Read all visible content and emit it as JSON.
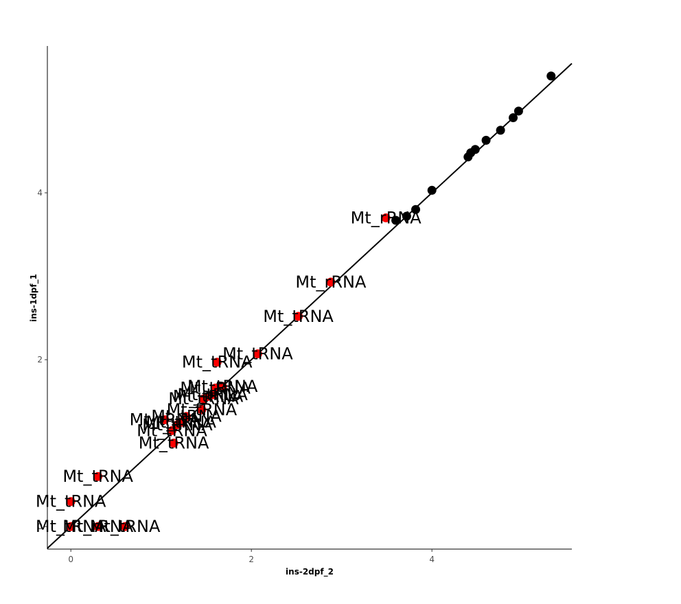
{
  "chart_data": {
    "type": "scatter",
    "xlabel": "ins-2dpf_2",
    "ylabel": "ins-1dpf_1",
    "xlim": [
      -0.26,
      5.55
    ],
    "ylim": [
      -0.27,
      5.76
    ],
    "x_ticks": [
      0,
      2,
      4
    ],
    "y_ticks": [
      0,
      2,
      4
    ],
    "x_tick_labels": [
      "0",
      "2",
      "4"
    ],
    "y_tick_labels": [
      "0",
      "2",
      "4"
    ],
    "grid": false,
    "reference_line": {
      "slope": 1,
      "intercept": 0
    },
    "colors": {
      "highlight": "#ff0000",
      "other": "#000000",
      "line": "#000000"
    },
    "series": [
      {
        "color": "#ff0000",
        "points": [
          {
            "x": 3.49,
            "y": 3.7,
            "label": "Mt_rRNA"
          },
          {
            "x": 2.88,
            "y": 2.93,
            "label": "Mt_rRNA"
          },
          {
            "x": 2.52,
            "y": 2.52,
            "label": "Mt_tRNA"
          },
          {
            "x": 2.07,
            "y": 2.07,
            "label": "Mt_tRNA"
          },
          {
            "x": 1.62,
            "y": 1.97,
            "label": "Mt_tRNA"
          },
          {
            "x": 1.68,
            "y": 1.68,
            "label": "Mt_tRNA"
          },
          {
            "x": 1.6,
            "y": 1.66,
            "label": "Mt_tRNA"
          },
          {
            "x": 1.57,
            "y": 1.58,
            "label": "Mt_tRNA"
          },
          {
            "x": 1.52,
            "y": 1.56,
            "label": "Mt_tRNA"
          },
          {
            "x": 1.47,
            "y": 1.53,
            "label": "Mt_tRNA"
          },
          {
            "x": 1.45,
            "y": 1.4,
            "label": "Mt_tRNA"
          },
          {
            "x": 1.28,
            "y": 1.32,
            "label": "Mt_tRNA"
          },
          {
            "x": 1.22,
            "y": 1.25,
            "label": "Mt_tRNA"
          },
          {
            "x": 1.04,
            "y": 1.28,
            "label": "Mt_tRNA"
          },
          {
            "x": 1.18,
            "y": 1.22,
            "label": "Mt_tRNA"
          },
          {
            "x": 1.12,
            "y": 1.15,
            "label": "Mt_tRNA"
          },
          {
            "x": 1.14,
            "y": 1.0,
            "label": "Mt_tRNA"
          },
          {
            "x": 0.3,
            "y": 0.6,
            "label": "Mt_tRNA"
          },
          {
            "x": 0.0,
            "y": 0.3,
            "label": "Mt_tRNA"
          },
          {
            "x": 0.0,
            "y": 0.0,
            "label": "Mt_tRNA"
          },
          {
            "x": 0.3,
            "y": 0.0,
            "label": "Mt_rRNA"
          },
          {
            "x": 0.6,
            "y": 0.0,
            "label": "Mt_tRNA"
          }
        ]
      },
      {
        "color": "#000000",
        "points": [
          {
            "x": 3.6,
            "y": 3.67
          },
          {
            "x": 3.72,
            "y": 3.72
          },
          {
            "x": 3.82,
            "y": 3.8
          },
          {
            "x": 4.0,
            "y": 4.03
          },
          {
            "x": 4.4,
            "y": 4.43
          },
          {
            "x": 4.43,
            "y": 4.48
          },
          {
            "x": 4.48,
            "y": 4.52
          },
          {
            "x": 4.6,
            "y": 4.63
          },
          {
            "x": 4.76,
            "y": 4.75
          },
          {
            "x": 4.9,
            "y": 4.9
          },
          {
            "x": 4.96,
            "y": 4.98
          },
          {
            "x": 5.32,
            "y": 5.4
          }
        ]
      }
    ]
  }
}
